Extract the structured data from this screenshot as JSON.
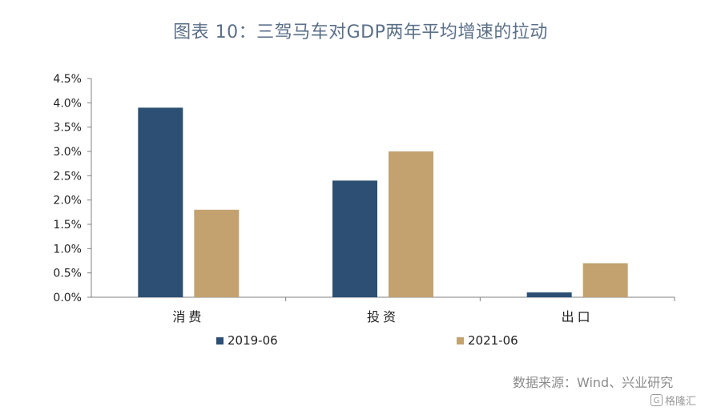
{
  "title": "图表 10：三驾马车对GDP两年平均增速的拉动",
  "source": "数据来源：Wind、兴业研究",
  "watermark": "格隆汇",
  "colors": {
    "series_2019": "#2c4f73",
    "series_2021": "#c3a270",
    "title": "#5a6f88",
    "axis": "#808080"
  },
  "chart_data": {
    "type": "bar",
    "categories": [
      "消费",
      "投资",
      "出口"
    ],
    "series": [
      {
        "name": "2019-06",
        "values": [
          3.9,
          2.4,
          0.1
        ]
      },
      {
        "name": "2021-06",
        "values": [
          1.8,
          3.0,
          0.7
        ]
      }
    ],
    "ylim": [
      0,
      4.5
    ],
    "yticks": [
      "0.0%",
      "0.5%",
      "1.0%",
      "1.5%",
      "2.0%",
      "2.5%",
      "3.0%",
      "3.5%",
      "4.0%",
      "4.5%"
    ],
    "grid": false,
    "legend": "bottom"
  }
}
